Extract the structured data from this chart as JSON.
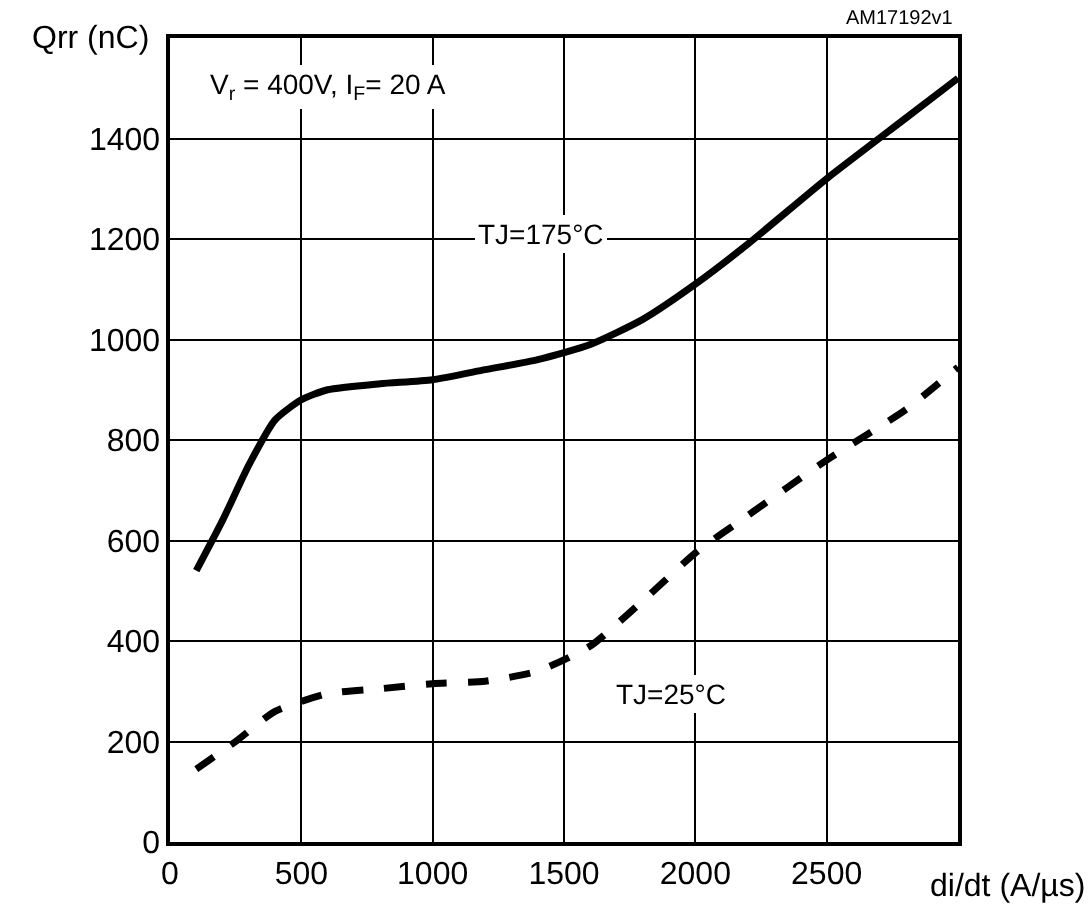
{
  "chart_data": {
    "type": "line",
    "xlabel": "di/dt (A/µs)",
    "ylabel": "Qrr (nC)",
    "series": [
      {
        "name": "TJ=175°C",
        "color": "#000000",
        "line_style": "solid",
        "x": [
          100,
          200,
          300,
          400,
          500,
          600,
          800,
          1000,
          1200,
          1400,
          1600,
          1800,
          2000,
          2200,
          2500,
          2800,
          3000
        ],
        "values": [
          540,
          640,
          750,
          840,
          880,
          900,
          912,
          920,
          940,
          960,
          990,
          1040,
          1110,
          1190,
          1320,
          1440,
          1520
        ]
      },
      {
        "name": "TJ=25°C",
        "color": "#000000",
        "line_style": "dashed",
        "x": [
          100,
          250,
          400,
          600,
          800,
          1000,
          1200,
          1400,
          1600,
          1800,
          2000,
          2200,
          2500,
          2800,
          3000
        ],
        "values": [
          145,
          200,
          260,
          295,
          305,
          315,
          320,
          340,
          390,
          480,
          575,
          650,
          760,
          860,
          945
        ]
      }
    ],
    "xlim": [
      0,
      3000
    ],
    "ylim": [
      0,
      1600
    ],
    "xticks": [
      0,
      500,
      1000,
      1500,
      2000,
      2500
    ],
    "yticks": [
      0,
      200,
      400,
      600,
      800,
      1000,
      1200,
      1400
    ],
    "grid": true,
    "legend": false,
    "marker": "none",
    "annotations": [
      "AM17192v1",
      "V$_{r}$ = 400V, I$_{F}$= 20 A"
    ]
  }
}
